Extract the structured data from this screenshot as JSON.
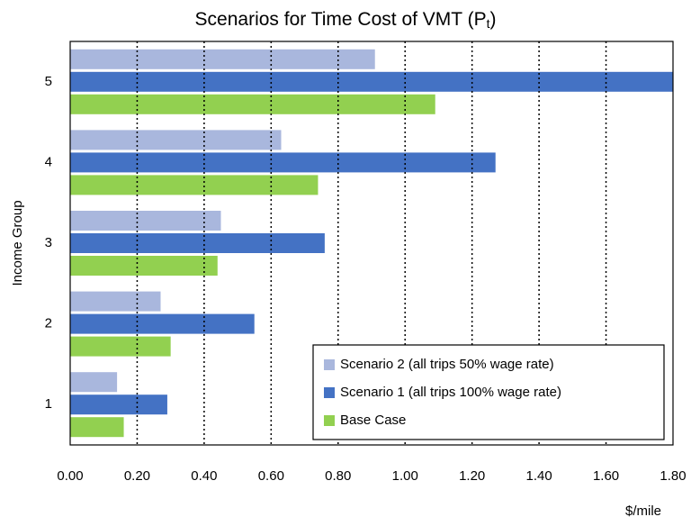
{
  "chart_data": {
    "type": "hbar",
    "title": "Scenarios for Time Cost of VMT (P",
    "title_subscript": "t",
    "title_end": ")",
    "x_label": "$/mile",
    "y_label": "Income Group",
    "categories": [
      "1",
      "2",
      "3",
      "4",
      "5"
    ],
    "series": [
      {
        "name": "Scenario 2 (all trips 50% wage rate)",
        "color": "#a9b7dd",
        "values": [
          0.14,
          0.27,
          0.45,
          0.63,
          0.91
        ]
      },
      {
        "name": "Scenario 1 (all trips 100% wage rate)",
        "color": "#4472c4",
        "values": [
          0.29,
          0.55,
          0.76,
          1.27,
          1.8
        ]
      },
      {
        "name": "Base Case",
        "color": "#92d050",
        "values": [
          0.16,
          0.3,
          0.44,
          0.74,
          1.09
        ]
      }
    ],
    "xlim": [
      0,
      1.8
    ],
    "xticks": [
      {
        "value": 0,
        "label": "0.00"
      },
      {
        "value": 0.2,
        "label": "0.20"
      },
      {
        "value": 0.4,
        "label": "0.40"
      },
      {
        "value": 0.6,
        "label": "0.60"
      },
      {
        "value": 0.8,
        "label": "0.80"
      },
      {
        "value": 1,
        "label": "1.00"
      },
      {
        "value": 1.2,
        "label": "1.20"
      },
      {
        "value": 1.4,
        "label": "1.40"
      },
      {
        "value": 1.6,
        "label": "1.60"
      },
      {
        "value": 1.8,
        "label": "1.80"
      }
    ],
    "grid": true,
    "legend": "lower right"
  }
}
